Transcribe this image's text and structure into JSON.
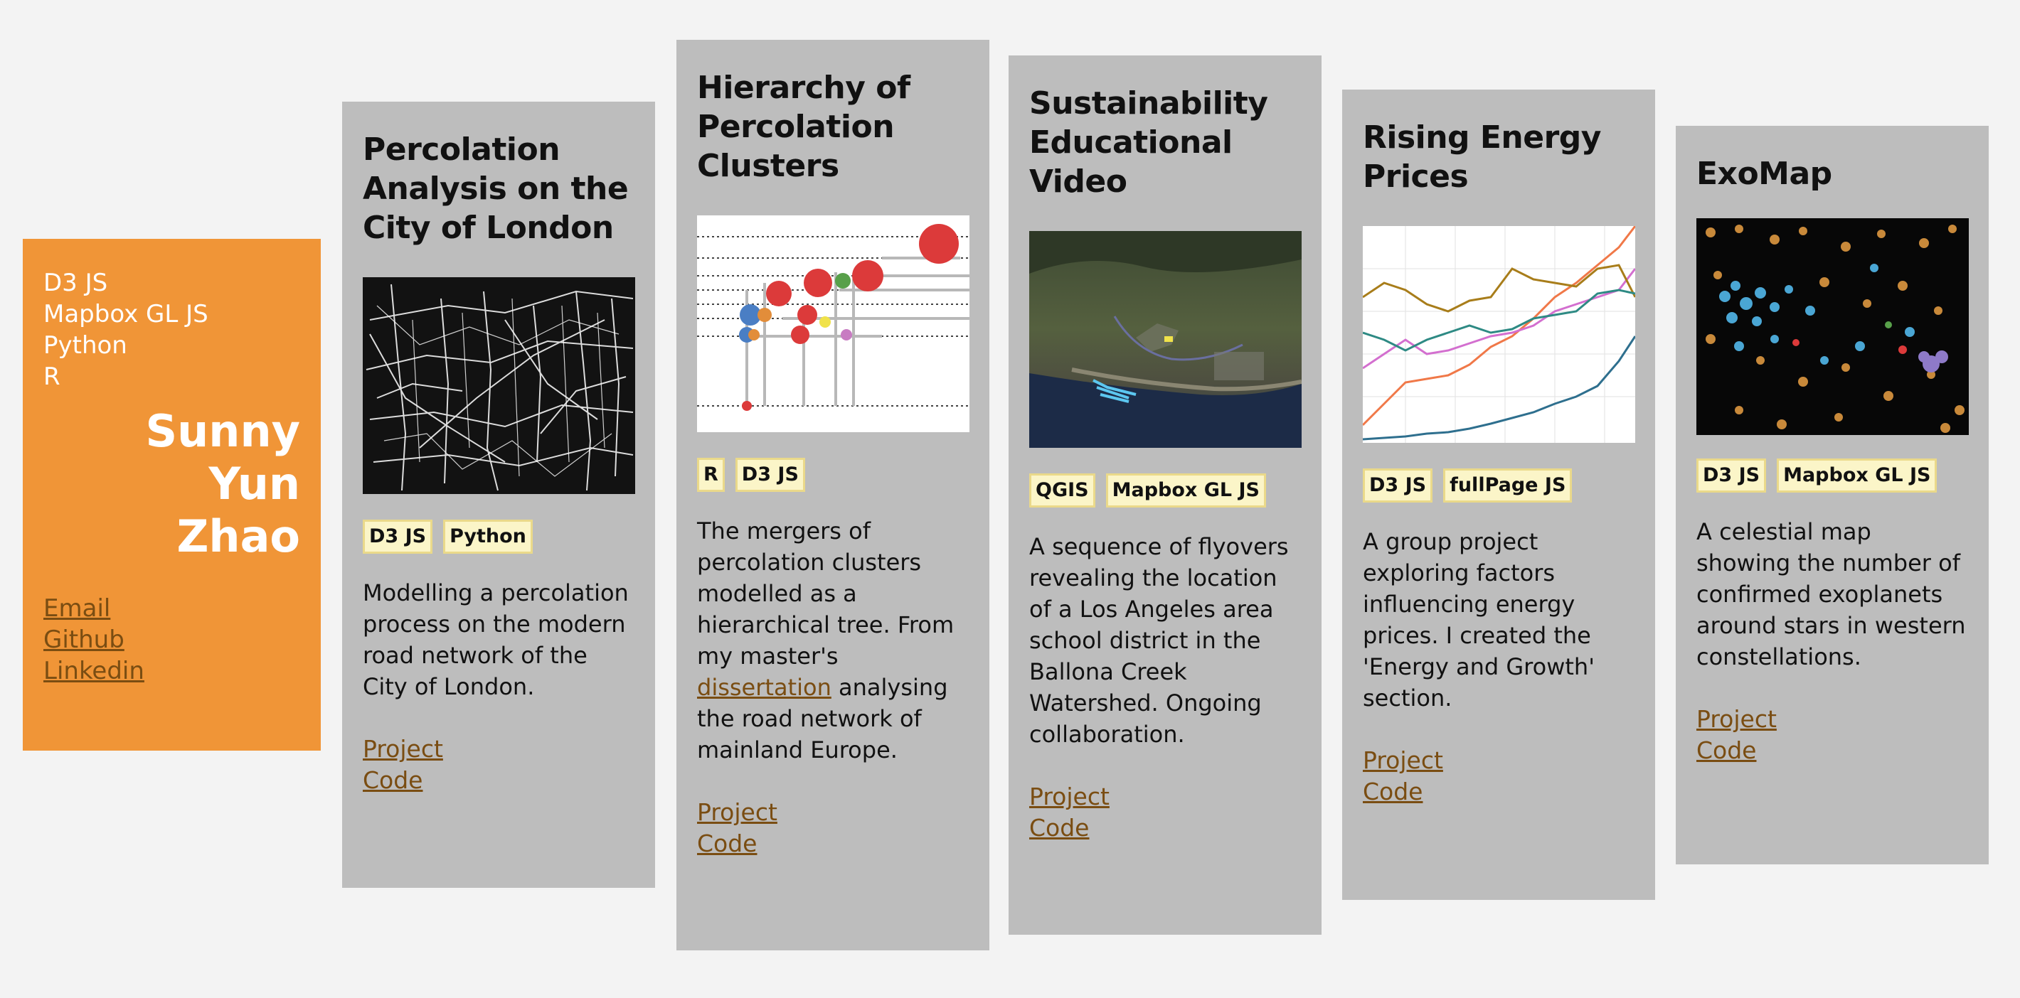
{
  "profile": {
    "skills": [
      "D3 JS",
      "Mapbox GL JS",
      "Python",
      "R"
    ],
    "name_lines": [
      "Sunny",
      "Yun",
      "Zhao"
    ],
    "links": [
      "Email",
      "Github",
      "Linkedin"
    ]
  },
  "cards": [
    {
      "title": "Percolation Analysis on the City of London",
      "tags": [
        "D3 JS",
        "Python"
      ],
      "description": "Modelling a percolation process on the modern road network of the City of London.",
      "project_label": "Project",
      "code_label": "Code"
    },
    {
      "title": "Hierarchy of Percolation Clusters",
      "tags": [
        "R",
        "D3 JS"
      ],
      "description_before": "The mergers of percolation clusters modelled as a hierarchical tree. From my master's ",
      "description_link": "dissertation",
      "description_after": " analysing the road network of mainland Europe.",
      "project_label": "Project",
      "code_label": "Code"
    },
    {
      "title": "Sustainability Educational Video",
      "tags": [
        "QGIS",
        "Mapbox GL JS"
      ],
      "description": "A sequence of flyovers revealing the location of a Los Angeles area school district in the Ballona Creek Watershed. Ongoing collaboration.",
      "project_label": "Project",
      "code_label": "Code"
    },
    {
      "title": "Rising Energy Prices",
      "tags": [
        "D3 JS",
        "fullPage JS"
      ],
      "description": "A group project exploring factors influencing energy prices. I created the 'Energy and Growth' section.",
      "project_label": "Project",
      "code_label": "Code"
    },
    {
      "title": "ExoMap",
      "tags": [
        "D3 JS",
        "Mapbox GL JS"
      ],
      "description": "A celestial map showing the number of confirmed exoplanets around stars in western constellations.",
      "project_label": "Project",
      "code_label": "Code"
    }
  ]
}
